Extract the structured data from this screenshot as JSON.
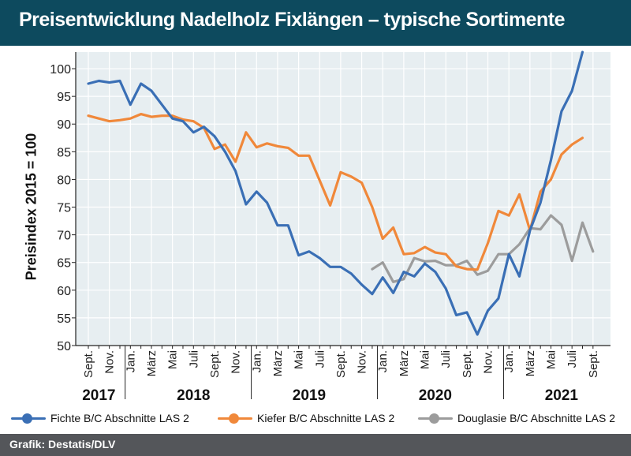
{
  "title": "Preisentwicklung Nadelholz Fixlängen – typische Sortimente",
  "footer": {
    "source": "Grafik: Destatis/DLV"
  },
  "colors": {
    "header": "#0d4a5e",
    "fichte": "#3a6fb5",
    "kiefer": "#f0883a",
    "douglasie": "#9c9c9c",
    "footer": "#54565a"
  },
  "chart_data": {
    "type": "line",
    "ylabel": "Preisindex 2015 = 100",
    "ylim": [
      50,
      103
    ],
    "yticks": [
      50,
      55,
      60,
      65,
      70,
      75,
      80,
      85,
      90,
      95,
      100
    ],
    "grid": true,
    "legend_position": "bottom",
    "x_months": [
      "2017-09",
      "2017-10",
      "2017-11",
      "2017-12",
      "2018-01",
      "2018-02",
      "2018-03",
      "2018-04",
      "2018-05",
      "2018-06",
      "2018-07",
      "2018-08",
      "2018-09",
      "2018-10",
      "2018-11",
      "2018-12",
      "2019-01",
      "2019-02",
      "2019-03",
      "2019-04",
      "2019-05",
      "2019-06",
      "2019-07",
      "2019-08",
      "2019-09",
      "2019-10",
      "2019-11",
      "2019-12",
      "2020-01",
      "2020-02",
      "2020-03",
      "2020-04",
      "2020-05",
      "2020-06",
      "2020-07",
      "2020-08",
      "2020-09",
      "2020-10",
      "2020-11",
      "2020-12",
      "2021-01",
      "2021-02",
      "2021-03",
      "2021-04",
      "2021-05",
      "2021-06",
      "2021-07",
      "2021-08",
      "2021-09"
    ],
    "x_tick_labels": [
      {
        "label": "Sept.",
        "index": 0
      },
      {
        "label": "Nov.",
        "index": 2
      },
      {
        "label": "Jan.",
        "index": 4
      },
      {
        "label": "März",
        "index": 6
      },
      {
        "label": "Mai",
        "index": 8
      },
      {
        "label": "Juli",
        "index": 10
      },
      {
        "label": "Sept.",
        "index": 12
      },
      {
        "label": "Nov.",
        "index": 14
      },
      {
        "label": "Jan.",
        "index": 16
      },
      {
        "label": "März",
        "index": 18
      },
      {
        "label": "Mai",
        "index": 20
      },
      {
        "label": "Juli",
        "index": 22
      },
      {
        "label": "Sept.",
        "index": 24
      },
      {
        "label": "Nov.",
        "index": 26
      },
      {
        "label": "Jan.",
        "index": 28
      },
      {
        "label": "März",
        "index": 30
      },
      {
        "label": "Mai",
        "index": 32
      },
      {
        "label": "Juli",
        "index": 34
      },
      {
        "label": "Sept.",
        "index": 36
      },
      {
        "label": "Nov.",
        "index": 38
      },
      {
        "label": "Jan.",
        "index": 40
      },
      {
        "label": "März",
        "index": 42
      },
      {
        "label": "Mai",
        "index": 44
      },
      {
        "label": "Juli",
        "index": 46
      },
      {
        "label": "Sept.",
        "index": 48
      }
    ],
    "year_labels": [
      {
        "label": "2017",
        "index": 1
      },
      {
        "label": "2018",
        "index": 10
      },
      {
        "label": "2019",
        "index": 21
      },
      {
        "label": "2020",
        "index": 33
      },
      {
        "label": "2021",
        "index": 45
      }
    ],
    "year_separators": [
      3.5,
      15.5,
      27.5,
      39.5
    ],
    "series": [
      {
        "name": "Fichte B/C Abschnitte LAS 2",
        "color": "#3a6fb5",
        "start_index": 0,
        "values": [
          97.3,
          97.8,
          97.5,
          97.8,
          93.5,
          97.3,
          96.0,
          93.5,
          91.0,
          90.5,
          88.5,
          89.5,
          87.8,
          85.0,
          81.5,
          75.5,
          77.8,
          75.8,
          71.7,
          71.7,
          66.3,
          67.0,
          65.8,
          64.2,
          64.2,
          63.0,
          61.0,
          59.3,
          62.3,
          59.5,
          63.3,
          62.5,
          64.8,
          63.3,
          60.3,
          55.5,
          56.0,
          52.0,
          56.3,
          58.5,
          66.5,
          62.5,
          70.8,
          75.8,
          83.5,
          92.3,
          96.0,
          103.0
        ]
      },
      {
        "name": "Kiefer B/C Abschnitte LAS 2",
        "color": "#f0883a",
        "start_index": 0,
        "values": [
          91.5,
          91.0,
          90.5,
          90.7,
          91.0,
          91.8,
          91.3,
          91.5,
          91.5,
          90.8,
          90.5,
          89.3,
          85.5,
          86.3,
          83.2,
          88.5,
          85.8,
          86.5,
          86.0,
          85.7,
          84.3,
          84.3,
          79.8,
          75.3,
          81.3,
          80.5,
          79.4,
          75.0,
          69.3,
          71.3,
          66.5,
          66.7,
          67.8,
          66.8,
          66.5,
          64.3,
          63.8,
          63.7,
          68.5,
          74.3,
          73.5,
          77.3,
          70.8,
          77.8,
          80.0,
          84.5,
          86.3,
          87.5
        ]
      },
      {
        "name": "Douglasie B/C Abschnitte LAS 2",
        "color": "#9c9c9c",
        "start_index": 27,
        "values": [
          63.8,
          65.0,
          61.5,
          62.0,
          65.8,
          65.2,
          65.3,
          64.5,
          64.5,
          65.3,
          62.8,
          63.5,
          66.5,
          66.5,
          68.3,
          71.2,
          71.0,
          73.5,
          71.8,
          65.3,
          72.2,
          67.0
        ]
      }
    ]
  }
}
